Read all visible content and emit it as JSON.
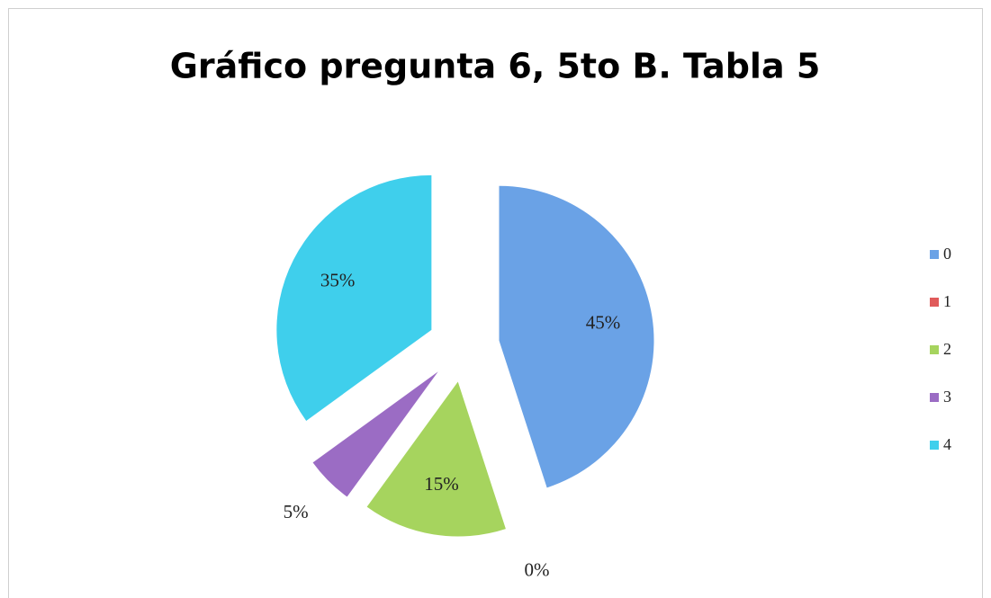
{
  "chart_data": {
    "type": "pie",
    "title": "Gráfico pregunta 6, 5to B. Tabla 5",
    "categories": [
      "0",
      "1",
      "2",
      "3",
      "4"
    ],
    "values": [
      45,
      0,
      15,
      5,
      35
    ],
    "value_labels": [
      "45%",
      "0%",
      "15%",
      "5%",
      "35%"
    ],
    "colors": [
      "#6aa2e6",
      "#e05a5a",
      "#a6d45e",
      "#9b6cc4",
      "#3fcfec"
    ],
    "exploded": true,
    "legend": "right"
  }
}
